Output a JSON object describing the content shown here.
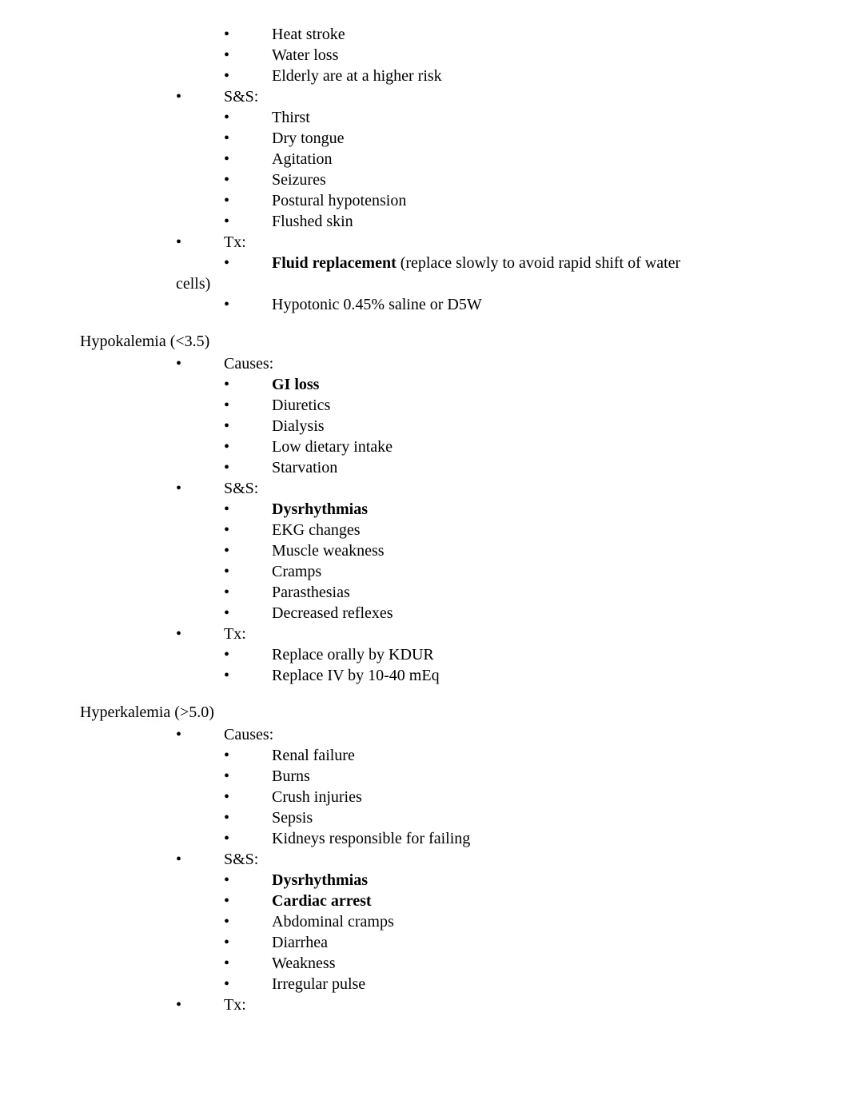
{
  "sections": [
    {
      "title": "",
      "groups": [
        {
          "label": "",
          "level": 1,
          "items": [
            {
              "text": "Heat stroke",
              "bold": false
            },
            {
              "text": "Water loss",
              "bold": false
            },
            {
              "text": "Elderly are at a higher risk",
              "bold": false
            }
          ]
        },
        {
          "label": "S&S:",
          "level": 0,
          "items": [
            {
              "text": "Thirst",
              "bold": false
            },
            {
              "text": "Dry tongue",
              "bold": false
            },
            {
              "text": "Agitation",
              "bold": false
            },
            {
              "text": "Seizures",
              "bold": false
            },
            {
              "text": "Postural hypotension",
              "bold": false
            },
            {
              "text": "Flushed skin",
              "bold": false
            }
          ]
        },
        {
          "label": "Tx:",
          "level": 0,
          "items": [
            {
              "text_bold": "Fluid replacement",
              "text_rest": " (replace slowly to avoid rapid shift of water",
              "bold": true
            },
            {
              "text": "Hypotonic 0.45% saline or D5W",
              "bold": false
            }
          ],
          "wrap_after_first": "cells)"
        }
      ]
    },
    {
      "title": "Hypokalemia (<3.5)",
      "groups": [
        {
          "label": "Causes:",
          "level": 0,
          "items": [
            {
              "text": "GI loss",
              "bold": true
            },
            {
              "text": "Diuretics",
              "bold": false
            },
            {
              "text": "Dialysis",
              "bold": false
            },
            {
              "text": "Low dietary intake",
              "bold": false
            },
            {
              "text": "Starvation",
              "bold": false
            }
          ]
        },
        {
          "label": "S&S:",
          "level": 0,
          "items": [
            {
              "text": "Dysrhythmias",
              "bold": true
            },
            {
              "text": "EKG changes",
              "bold": false
            },
            {
              "text": "Muscle weakness",
              "bold": false
            },
            {
              "text": "Cramps",
              "bold": false
            },
            {
              "text": "Parasthesias",
              "bold": false
            },
            {
              "text": "Decreased reflexes",
              "bold": false
            }
          ]
        },
        {
          "label": "Tx:",
          "level": 0,
          "items": [
            {
              "text": "Replace orally by KDUR",
              "bold": false
            },
            {
              "text": "Replace IV by 10-40 mEq",
              "bold": false
            }
          ]
        }
      ]
    },
    {
      "title": "Hyperkalemia (>5.0)",
      "groups": [
        {
          "label": "Causes:",
          "level": 0,
          "items": [
            {
              "text": "Renal failure",
              "bold": false
            },
            {
              "text": "Burns",
              "bold": false
            },
            {
              "text": "Crush injuries",
              "bold": false
            },
            {
              "text": "Sepsis",
              "bold": false
            },
            {
              "text": "Kidneys responsible for failing",
              "bold": false
            }
          ]
        },
        {
          "label": "S&S:",
          "level": 0,
          "items": [
            {
              "text": "Dysrhythmias",
              "bold": true
            },
            {
              "text": "Cardiac arrest",
              "bold": true
            },
            {
              "text": "Abdominal cramps",
              "bold": false
            },
            {
              "text": "Diarrhea",
              "bold": false
            },
            {
              "text": "Weakness",
              "bold": false
            },
            {
              "text": "Irregular pulse",
              "bold": false
            }
          ]
        },
        {
          "label": "Tx:",
          "level": 0,
          "items": []
        }
      ]
    }
  ]
}
